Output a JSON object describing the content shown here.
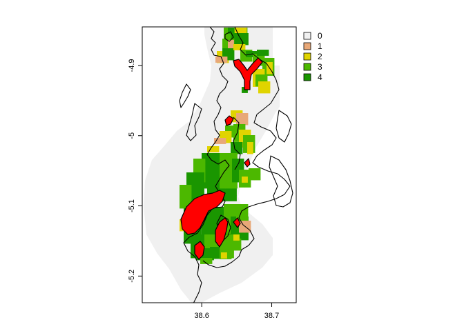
{
  "chart_data": {
    "type": "heatmap",
    "title": "",
    "xlabel": "",
    "ylabel": "",
    "xlim": [
      38.515,
      38.735
    ],
    "ylim": [
      -5.238,
      -4.845
    ],
    "x_ticks": [
      {
        "value": 38.6,
        "label": "38.6"
      },
      {
        "value": 38.7,
        "label": "38.7"
      }
    ],
    "y_ticks": [
      {
        "value": -4.9,
        "label": "-4.9"
      },
      {
        "value": -5.0,
        "label": "-5"
      },
      {
        "value": -5.1,
        "label": "-5.1"
      },
      {
        "value": -5.2,
        "label": "-5.2"
      }
    ],
    "legend": {
      "placement": "right",
      "entries": [
        {
          "label": "0",
          "color": "#f0f0f0"
        },
        {
          "label": "1",
          "color": "#e8a878"
        },
        {
          "label": "2",
          "color": "#e0d400"
        },
        {
          "label": "3",
          "color": "#4cb800"
        },
        {
          "label": "4",
          "color": "#1a9600"
        }
      ]
    },
    "colors": {
      "zero": "#f0f0f0",
      "one": "#e8a878",
      "two": "#e0d400",
      "three": "#4cb800",
      "four": "#1a9600",
      "highlight": "#ff0000",
      "outline": "#000000"
    }
  }
}
